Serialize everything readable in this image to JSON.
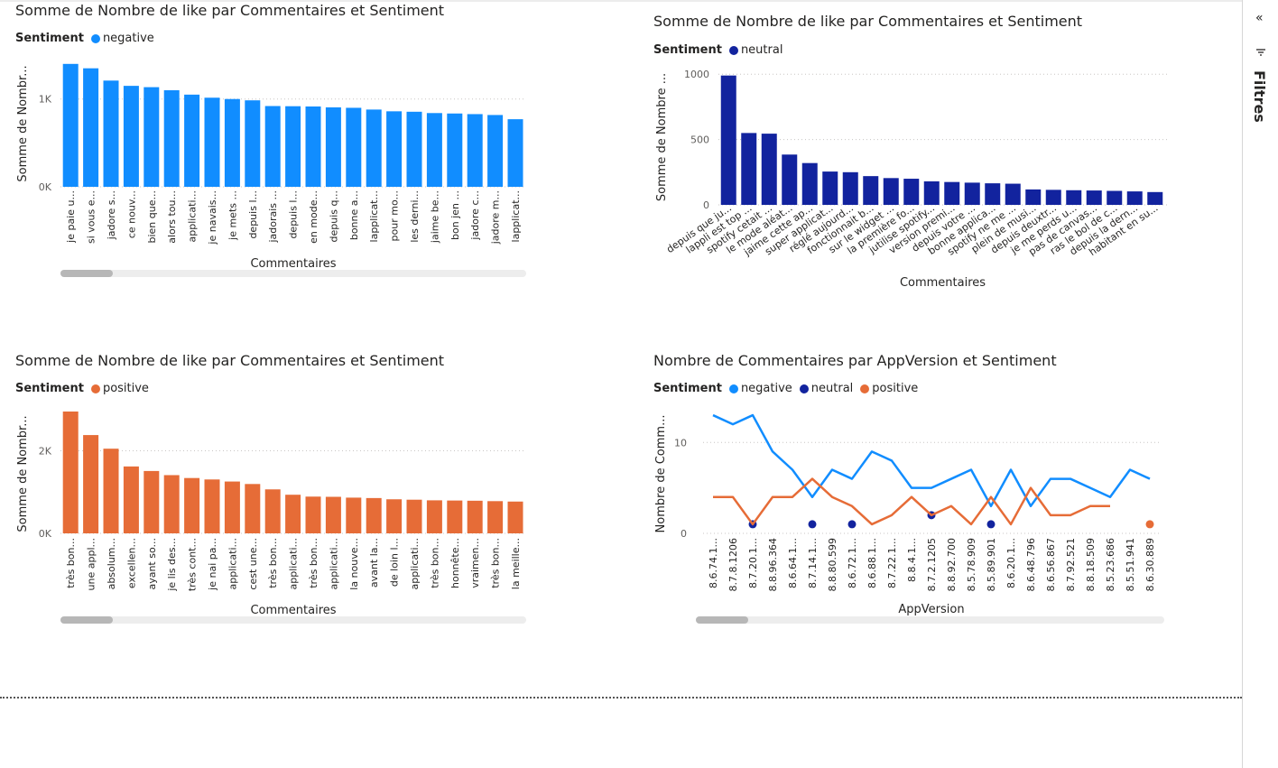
{
  "pane": {
    "collapse_icon": "double-chevron-right-icon",
    "filter_icon": "filter-icon",
    "label": "Filtres"
  },
  "legend_title": "Sentiment",
  "colors": {
    "negative": "#118dff",
    "neutral": "#12239e",
    "positive": "#e66c37"
  },
  "chart_data": [
    {
      "id": "neg",
      "type": "bar",
      "title": "Somme de Nombre de like par Commentaires et Sentiment",
      "legend": [
        "negative"
      ],
      "xlabel": "Commentaires",
      "ylabel": "Somme de Nombr...",
      "ylim": [
        0,
        1470
      ],
      "yticks": [
        0,
        1000
      ],
      "ytick_labels": [
        "0K",
        "1K"
      ],
      "categories": [
        "je paie u...",
        "si vous e...",
        "jadore s...",
        "ce nouv...",
        "bien que...",
        "alors tou...",
        "applicati...",
        "je navais...",
        "je mets ...",
        "depuis l...",
        "jadorais ...",
        "depuis l...",
        "en mode...",
        "depuis q...",
        "bonne a...",
        "lapplicat...",
        "pour mo...",
        "les derni...",
        "jaime be...",
        "bon jen ...",
        "jadore c...",
        "jadore m...",
        "lapplicat..."
      ],
      "values": [
        1400,
        1350,
        1210,
        1150,
        1135,
        1100,
        1050,
        1015,
        1000,
        985,
        920,
        918,
        915,
        905,
        900,
        880,
        860,
        855,
        840,
        835,
        828,
        818,
        770
      ]
    },
    {
      "id": "neu",
      "type": "bar",
      "title": "Somme de Nombre de like par Commentaires et Sentiment",
      "legend": [
        "neutral"
      ],
      "xlabel": "Commentaires",
      "ylabel": "Somme de Nombre ...",
      "ylim": [
        0,
        1050
      ],
      "yticks": [
        0,
        500,
        1000
      ],
      "ytick_labels": [
        "0",
        "500",
        "1000"
      ],
      "categories": [
        "depuis que ju...",
        "lappli est top ...",
        "spotify cetait ...",
        "le mode aléat...",
        "jaime cette ap...",
        "super applicat...",
        "réglé aujourd...",
        "fonctionnait b...",
        "sur le widget ...",
        "la première fo...",
        "jutilise spotify...",
        "version premi...",
        "depuis votre ...",
        "bonne applica...",
        "spotify ne me ...",
        "plein de musi...",
        "depuis deuxtr...",
        "je me perds u...",
        "pas de canvas...",
        "ras le bol de c...",
        "depuis la dern...",
        "habitant en su..."
      ],
      "values": [
        990,
        550,
        545,
        385,
        320,
        255,
        250,
        220,
        205,
        200,
        180,
        175,
        170,
        165,
        162,
        118,
        115,
        112,
        110,
        107,
        103,
        98
      ]
    },
    {
      "id": "pos",
      "type": "bar",
      "title": "Somme de Nombre de like par Commentaires et Sentiment",
      "legend": [
        "positive"
      ],
      "xlabel": "Commentaires",
      "ylabel": "Somme de Nombr...",
      "ylim": [
        0,
        2950
      ],
      "yticks": [
        0,
        2000
      ],
      "ytick_labels": [
        "0K",
        "2K"
      ],
      "categories": [
        "très bon...",
        "une appl...",
        "absolum...",
        "excellen...",
        "ayant so...",
        "je lis des...",
        "très cont...",
        "je nai pa...",
        "applicati...",
        "cest une...",
        "très bon...",
        "applicati...",
        "très bon...",
        "applicati...",
        "la nouve...",
        "avant la...",
        "de loin l...",
        "applicati...",
        "très bon...",
        "honnête...",
        "vraimen...",
        "très bon...",
        "la meille..."
      ],
      "values": [
        2950,
        2380,
        2050,
        1620,
        1510,
        1410,
        1340,
        1305,
        1255,
        1195,
        1065,
        935,
        890,
        885,
        865,
        855,
        825,
        815,
        800,
        795,
        790,
        780,
        770
      ]
    },
    {
      "id": "app",
      "type": "line",
      "title": "Nombre de Commentaires par AppVersion et Sentiment",
      "legend": [
        "negative",
        "neutral",
        "positive"
      ],
      "xlabel": "AppVersion",
      "ylabel": "Nombre de Comm...",
      "ylim": [
        0,
        14
      ],
      "yticks": [
        0,
        10
      ],
      "ytick_labels": [
        "0",
        "10"
      ],
      "categories": [
        "8.6.74.1...",
        "8.7.8.1206",
        "8.7.20.1...",
        "8.8.96.364",
        "8.6.64.1...",
        "8.7.14.1...",
        "8.8.80.599",
        "8.6.72.1...",
        "8.6.88.1...",
        "8.7.22.1...",
        "8.8.4.1...",
        "8.7.2.1205",
        "8.8.92.700",
        "8.5.78.909",
        "8.5.89.901",
        "8.6.20.1...",
        "8.6.48.796",
        "8.6.56.867",
        "8.7.92.521",
        "8.8.18.509",
        "8.5.23.686",
        "8.5.51.941",
        "8.6.30.889"
      ],
      "series": [
        {
          "name": "negative",
          "values": [
            13,
            12,
            13,
            9,
            7,
            4,
            7,
            6,
            9,
            8,
            5,
            5,
            6,
            7,
            3,
            7,
            3,
            6,
            6,
            5,
            4,
            7,
            6
          ]
        },
        {
          "name": "neutral",
          "values": [
            null,
            null,
            1,
            null,
            null,
            1,
            null,
            1,
            null,
            null,
            null,
            2,
            null,
            null,
            1,
            null,
            null,
            null,
            null,
            null,
            null,
            null,
            null
          ]
        },
        {
          "name": "positive",
          "values": [
            4,
            4,
            1,
            4,
            4,
            6,
            4,
            3,
            1,
            2,
            4,
            2,
            3,
            1,
            4,
            1,
            5,
            2,
            2,
            3,
            3,
            null,
            1
          ]
        }
      ]
    }
  ]
}
